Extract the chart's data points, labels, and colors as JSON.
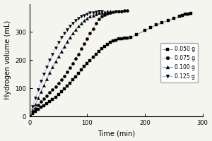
{
  "title": "",
  "xlabel": "Time (min)",
  "ylabel": "Hydrogen volume (mL)",
  "xlim": [
    0,
    300
  ],
  "ylim": [
    0,
    400
  ],
  "xticks": [
    0,
    100,
    200,
    300
  ],
  "yticks": [
    0,
    100,
    200,
    300
  ],
  "legend_labels": [
    "0.050 g",
    "0.075 g",
    "0.100 g",
    "0.125 g"
  ],
  "bg_color": "#f5f5f0",
  "series": {
    "0.050g": {
      "line_color": "#888888",
      "marker_color": "black",
      "marker": "s",
      "points": [
        [
          0,
          0
        ],
        [
          5,
          10
        ],
        [
          10,
          18
        ],
        [
          15,
          25
        ],
        [
          20,
          32
        ],
        [
          25,
          38
        ],
        [
          30,
          45
        ],
        [
          35,
          52
        ],
        [
          40,
          60
        ],
        [
          45,
          68
        ],
        [
          50,
          77
        ],
        [
          55,
          87
        ],
        [
          60,
          97
        ],
        [
          65,
          108
        ],
        [
          70,
          119
        ],
        [
          75,
          130
        ],
        [
          80,
          141
        ],
        [
          85,
          153
        ],
        [
          90,
          165
        ],
        [
          95,
          177
        ],
        [
          100,
          188
        ],
        [
          105,
          199
        ],
        [
          110,
          210
        ],
        [
          115,
          220
        ],
        [
          120,
          230
        ],
        [
          125,
          240
        ],
        [
          130,
          248
        ],
        [
          135,
          256
        ],
        [
          140,
          263
        ],
        [
          145,
          268
        ],
        [
          150,
          272
        ],
        [
          155,
          275
        ],
        [
          160,
          277
        ],
        [
          165,
          278
        ],
        [
          170,
          279
        ],
        [
          175,
          280
        ],
        [
          185,
          290
        ],
        [
          200,
          305
        ],
        [
          210,
          315
        ],
        [
          220,
          325
        ],
        [
          230,
          333
        ],
        [
          240,
          340
        ],
        [
          250,
          348
        ],
        [
          260,
          355
        ],
        [
          265,
          360
        ],
        [
          270,
          363
        ],
        [
          275,
          365
        ],
        [
          280,
          367
        ]
      ]
    },
    "0.075g": {
      "line_color": "#f5a0a0",
      "marker_color": "black",
      "marker": "o",
      "points": [
        [
          0,
          0
        ],
        [
          5,
          15
        ],
        [
          10,
          28
        ],
        [
          15,
          40
        ],
        [
          20,
          52
        ],
        [
          25,
          63
        ],
        [
          30,
          74
        ],
        [
          35,
          85
        ],
        [
          40,
          95
        ],
        [
          45,
          106
        ],
        [
          50,
          118
        ],
        [
          55,
          130
        ],
        [
          60,
          143
        ],
        [
          65,
          157
        ],
        [
          70,
          172
        ],
        [
          75,
          188
        ],
        [
          80,
          205
        ],
        [
          85,
          222
        ],
        [
          90,
          240
        ],
        [
          95,
          258
        ],
        [
          100,
          275
        ],
        [
          105,
          295
        ],
        [
          110,
          312
        ],
        [
          115,
          330
        ],
        [
          120,
          345
        ],
        [
          125,
          355
        ],
        [
          130,
          362
        ],
        [
          135,
          367
        ],
        [
          140,
          370
        ],
        [
          145,
          372
        ],
        [
          150,
          373
        ],
        [
          155,
          374
        ],
        [
          160,
          375
        ],
        [
          165,
          376
        ],
        [
          170,
          377
        ]
      ]
    },
    "0.100g": {
      "line_color": "#9090e0",
      "marker_color": "black",
      "marker": "^",
      "points": [
        [
          0,
          0
        ],
        [
          5,
          22
        ],
        [
          10,
          42
        ],
        [
          15,
          65
        ],
        [
          20,
          88
        ],
        [
          25,
          110
        ],
        [
          30,
          133
        ],
        [
          35,
          155
        ],
        [
          40,
          175
        ],
        [
          45,
          195
        ],
        [
          50,
          214
        ],
        [
          55,
          232
        ],
        [
          60,
          249
        ],
        [
          65,
          265
        ],
        [
          70,
          280
        ],
        [
          75,
          295
        ],
        [
          80,
          308
        ],
        [
          85,
          320
        ],
        [
          90,
          330
        ],
        [
          95,
          340
        ],
        [
          100,
          348
        ],
        [
          105,
          355
        ],
        [
          110,
          360
        ],
        [
          115,
          365
        ],
        [
          120,
          368
        ],
        [
          125,
          370
        ],
        [
          130,
          372
        ],
        [
          135,
          373
        ],
        [
          140,
          374
        ]
      ]
    },
    "0.125g": {
      "line_color": "#a0c8d8",
      "marker_color": "black",
      "marker": "v",
      "points": [
        [
          0,
          0
        ],
        [
          5,
          35
        ],
        [
          10,
          65
        ],
        [
          15,
          95
        ],
        [
          20,
          125
        ],
        [
          25,
          150
        ],
        [
          30,
          175
        ],
        [
          35,
          200
        ],
        [
          40,
          222
        ],
        [
          45,
          244
        ],
        [
          50,
          263
        ],
        [
          55,
          280
        ],
        [
          60,
          295
        ],
        [
          65,
          308
        ],
        [
          70,
          320
        ],
        [
          75,
          330
        ],
        [
          80,
          340
        ],
        [
          85,
          348
        ],
        [
          90,
          355
        ],
        [
          95,
          360
        ],
        [
          100,
          365
        ],
        [
          105,
          368
        ],
        [
          110,
          370
        ],
        [
          115,
          372
        ],
        [
          120,
          373
        ],
        [
          125,
          374
        ]
      ]
    }
  }
}
